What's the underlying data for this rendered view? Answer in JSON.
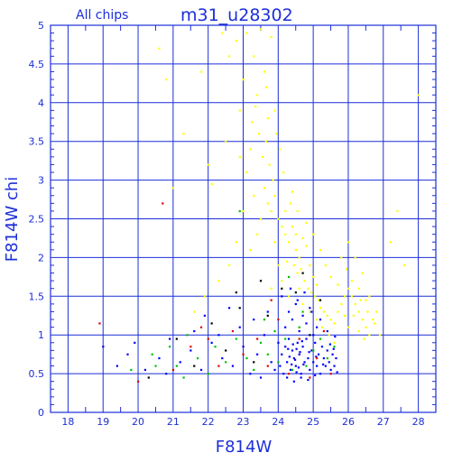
{
  "chart_data": {
    "type": "scatter",
    "title": "m31_u28302",
    "subtitle": "All chips",
    "xlabel": "F814W",
    "ylabel": "F814W chi",
    "xlim": [
      17.5,
      28.5
    ],
    "ylim": [
      0,
      5
    ],
    "x_ticks": [
      "18",
      "19",
      "20",
      "21",
      "22",
      "23",
      "24",
      "25",
      "26",
      "27",
      "28"
    ],
    "y_ticks": [
      "0",
      "0.5",
      "1",
      "1.5",
      "2",
      "2.5",
      "3",
      "3.5",
      "4",
      "4.5",
      "5"
    ],
    "grid": true,
    "legend": "none",
    "series": [
      {
        "color": "#ffff00",
        "points": [
          [
            20.6,
            4.7
          ],
          [
            21.3,
            3.6
          ],
          [
            21.8,
            4.4
          ],
          [
            22.0,
            3.2
          ],
          [
            22.4,
            4.9
          ],
          [
            22.6,
            4.6
          ],
          [
            22.8,
            4.8
          ],
          [
            22.9,
            3.9
          ],
          [
            23.0,
            4.3
          ],
          [
            23.1,
            4.9
          ],
          [
            23.2,
            3.4
          ],
          [
            23.3,
            4.6
          ],
          [
            23.4,
            4.1
          ],
          [
            23.5,
            4.95
          ],
          [
            23.6,
            4.4
          ],
          [
            23.7,
            3.8
          ],
          [
            23.8,
            4.85
          ],
          [
            23.9,
            3.9
          ],
          [
            23.45,
            3.6
          ],
          [
            23.55,
            3.3
          ],
          [
            23.65,
            3.5
          ],
          [
            23.75,
            3.2
          ],
          [
            23.85,
            3.0
          ],
          [
            23.6,
            2.9
          ],
          [
            23.7,
            2.7
          ],
          [
            23.8,
            2.6
          ],
          [
            23.9,
            2.8
          ],
          [
            24.0,
            2.5
          ],
          [
            24.1,
            2.4
          ],
          [
            24.2,
            2.3
          ],
          [
            24.3,
            2.2
          ],
          [
            24.4,
            2.4
          ],
          [
            24.5,
            2.1
          ],
          [
            24.6,
            2.0
          ],
          [
            24.2,
            2.6
          ],
          [
            24.35,
            2.7
          ],
          [
            24.45,
            1.9
          ],
          [
            24.55,
            1.8
          ],
          [
            24.65,
            1.85
          ],
          [
            24.75,
            1.7
          ],
          [
            24.85,
            1.6
          ],
          [
            24.95,
            1.55
          ],
          [
            25.05,
            1.5
          ],
          [
            25.15,
            1.45
          ],
          [
            24.5,
            2.3
          ],
          [
            24.7,
            2.25
          ],
          [
            24.8,
            2.15
          ],
          [
            24.9,
            1.9
          ],
          [
            25.0,
            1.75
          ],
          [
            25.1,
            1.65
          ],
          [
            25.2,
            1.35
          ],
          [
            25.3,
            1.3
          ],
          [
            25.4,
            1.25
          ],
          [
            25.5,
            1.2
          ],
          [
            25.6,
            1.15
          ],
          [
            25.7,
            1.3
          ],
          [
            25.8,
            1.4
          ],
          [
            25.9,
            1.5
          ],
          [
            26.0,
            1.6
          ],
          [
            26.1,
            1.5
          ],
          [
            26.2,
            1.4
          ],
          [
            26.3,
            1.3
          ],
          [
            26.4,
            1.2
          ],
          [
            26.5,
            1.1
          ],
          [
            26.6,
            1.0
          ],
          [
            26.7,
            1.2
          ],
          [
            26.8,
            1.3
          ],
          [
            26.1,
            1.7
          ],
          [
            26.3,
            1.6
          ],
          [
            26.5,
            1.45
          ],
          [
            26.4,
            1.8
          ],
          [
            26.2,
            2.0
          ],
          [
            26.0,
            2.2
          ],
          [
            25.8,
            2.0
          ],
          [
            26.6,
            1.5
          ],
          [
            26.75,
            1.15
          ],
          [
            26.9,
            1.0
          ],
          [
            26.45,
            0.95
          ],
          [
            26.3,
            1.05
          ],
          [
            26.0,
            1.1
          ],
          [
            25.9,
            1.25
          ],
          [
            23.2,
            2.1
          ],
          [
            23.4,
            2.3
          ],
          [
            23.0,
            2.6
          ],
          [
            22.8,
            2.2
          ],
          [
            22.6,
            1.9
          ],
          [
            22.3,
            1.7
          ],
          [
            21.9,
            1.5
          ],
          [
            21.6,
            1.3
          ],
          [
            23.1,
            3.1
          ],
          [
            22.9,
            3.3
          ],
          [
            23.3,
            2.8
          ],
          [
            23.5,
            2.5
          ],
          [
            23.9,
            2.2
          ],
          [
            24.0,
            1.9
          ],
          [
            24.1,
            1.7
          ],
          [
            23.8,
            1.6
          ],
          [
            24.3,
            1.5
          ],
          [
            24.25,
            1.95
          ],
          [
            24.6,
            1.6
          ],
          [
            24.7,
            1.4
          ],
          [
            24.9,
            1.3
          ],
          [
            25.1,
            1.2
          ],
          [
            25.25,
            1.1
          ],
          [
            25.45,
            1.0
          ],
          [
            25.6,
            0.9
          ],
          [
            28.0,
            4.1
          ],
          [
            27.4,
            2.6
          ],
          [
            27.2,
            2.2
          ],
          [
            27.6,
            1.9
          ],
          [
            24.05,
            3.4
          ],
          [
            24.15,
            3.1
          ],
          [
            23.95,
            3.6
          ],
          [
            23.35,
            3.95
          ],
          [
            24.4,
            2.85
          ],
          [
            24.55,
            2.6
          ],
          [
            24.8,
            2.45
          ],
          [
            25.0,
            2.3
          ],
          [
            25.2,
            2.1
          ],
          [
            25.35,
            1.9
          ],
          [
            25.5,
            1.75
          ],
          [
            25.7,
            1.65
          ],
          [
            25.95,
            1.85
          ],
          [
            26.15,
            1.25
          ],
          [
            26.35,
            1.45
          ],
          [
            26.55,
            1.3
          ],
          [
            22.1,
            2.95
          ],
          [
            22.5,
            3.5
          ],
          [
            21.0,
            2.9
          ],
          [
            20.8,
            4.3
          ],
          [
            23.65,
            4.2
          ],
          [
            23.25,
            3.75
          ]
        ]
      },
      {
        "color": "#0000ff",
        "points": [
          [
            19.0,
            0.85
          ],
          [
            19.4,
            0.6
          ],
          [
            19.7,
            0.75
          ],
          [
            20.2,
            0.55
          ],
          [
            20.6,
            0.7
          ],
          [
            20.9,
            0.95
          ],
          [
            21.2,
            0.65
          ],
          [
            21.5,
            0.8
          ],
          [
            21.8,
            0.55
          ],
          [
            22.1,
            0.9
          ],
          [
            22.4,
            0.7
          ],
          [
            22.7,
            0.6
          ],
          [
            23.0,
            0.85
          ],
          [
            23.2,
            0.5
          ],
          [
            23.4,
            0.75
          ],
          [
            23.6,
            1.0
          ],
          [
            23.8,
            0.65
          ],
          [
            23.9,
            0.55
          ],
          [
            24.0,
            0.9
          ],
          [
            24.05,
            0.6
          ],
          [
            24.1,
            0.75
          ],
          [
            24.15,
            0.5
          ],
          [
            24.2,
            0.85
          ],
          [
            24.25,
            0.65
          ],
          [
            24.3,
            0.95
          ],
          [
            24.35,
            0.55
          ],
          [
            24.4,
            0.8
          ],
          [
            24.45,
            0.7
          ],
          [
            24.5,
            0.6
          ],
          [
            24.55,
            0.9
          ],
          [
            24.6,
            0.75
          ],
          [
            24.65,
            0.5
          ],
          [
            24.7,
            0.85
          ],
          [
            24.75,
            0.65
          ],
          [
            24.8,
            0.95
          ],
          [
            24.85,
            0.7
          ],
          [
            24.9,
            0.55
          ],
          [
            24.95,
            0.8
          ],
          [
            25.0,
            0.65
          ],
          [
            25.05,
            0.9
          ],
          [
            25.1,
            0.6
          ],
          [
            25.15,
            0.75
          ],
          [
            25.2,
            0.5
          ],
          [
            25.25,
            0.85
          ],
          [
            25.3,
            0.7
          ],
          [
            25.35,
            0.6
          ],
          [
            25.4,
            0.8
          ],
          [
            25.45,
            0.65
          ],
          [
            25.5,
            0.55
          ],
          [
            25.55,
            0.75
          ],
          [
            25.6,
            0.6
          ],
          [
            25.65,
            0.7
          ],
          [
            24.2,
            1.1
          ],
          [
            24.4,
            1.2
          ],
          [
            24.6,
            1.05
          ],
          [
            24.8,
            1.15
          ],
          [
            25.0,
            1.0
          ],
          [
            24.3,
            1.3
          ],
          [
            24.5,
            1.4
          ],
          [
            24.7,
            1.25
          ],
          [
            24.9,
            1.35
          ],
          [
            25.1,
            1.1
          ],
          [
            24.1,
            1.5
          ],
          [
            24.35,
            1.6
          ],
          [
            24.55,
            1.45
          ],
          [
            24.75,
            1.55
          ],
          [
            24.95,
            1.3
          ],
          [
            25.2,
            1.2
          ],
          [
            25.4,
            1.05
          ],
          [
            24.25,
            0.45
          ],
          [
            24.45,
            0.4
          ],
          [
            24.65,
            0.45
          ],
          [
            24.85,
            0.42
          ],
          [
            25.05,
            0.48
          ],
          [
            22.9,
            1.1
          ],
          [
            23.3,
            1.2
          ],
          [
            23.5,
            0.45
          ],
          [
            22.3,
            1.0
          ],
          [
            21.6,
            1.05
          ],
          [
            20.8,
            0.5
          ],
          [
            19.9,
            0.9
          ],
          [
            21.9,
            1.25
          ],
          [
            22.6,
            1.35
          ],
          [
            23.7,
            1.3
          ],
          [
            24.32,
            0.72
          ],
          [
            24.48,
            0.68
          ],
          [
            24.52,
            0.82
          ],
          [
            24.38,
            0.62
          ],
          [
            24.58,
            0.58
          ],
          [
            24.42,
            0.88
          ],
          [
            24.62,
            0.78
          ],
          [
            24.28,
            0.82
          ],
          [
            24.72,
            0.62
          ],
          [
            24.68,
            0.92
          ],
          [
            24.52,
            0.52
          ],
          [
            24.88,
            0.78
          ],
          [
            25.08,
            0.72
          ],
          [
            25.28,
            0.62
          ],
          [
            25.48,
            0.88
          ],
          [
            25.58,
            0.82
          ],
          [
            25.68,
            0.52
          ],
          [
            25.62,
            0.98
          ]
        ]
      },
      {
        "color": "#00c000",
        "points": [
          [
            19.8,
            0.55
          ],
          [
            20.4,
            0.75
          ],
          [
            20.9,
            0.85
          ],
          [
            21.1,
            0.6
          ],
          [
            21.4,
            1.0
          ],
          [
            21.7,
            0.7
          ],
          [
            22.0,
            0.5
          ],
          [
            22.2,
            0.85
          ],
          [
            22.5,
            0.65
          ],
          [
            22.8,
            0.95
          ],
          [
            23.1,
            0.7
          ],
          [
            23.3,
            0.55
          ],
          [
            23.5,
            0.9
          ],
          [
            23.7,
            0.75
          ],
          [
            23.9,
            1.05
          ],
          [
            24.0,
            0.65
          ],
          [
            24.2,
            0.95
          ],
          [
            24.4,
            0.55
          ],
          [
            24.6,
            1.1
          ],
          [
            24.8,
            0.6
          ],
          [
            25.0,
            0.8
          ],
          [
            25.2,
            0.95
          ],
          [
            25.4,
            0.7
          ],
          [
            25.6,
            0.85
          ],
          [
            22.9,
            2.6
          ],
          [
            24.3,
            1.75
          ],
          [
            24.7,
            1.3
          ],
          [
            23.6,
            1.2
          ],
          [
            21.3,
            0.45
          ],
          [
            20.5,
            0.6
          ]
        ]
      },
      {
        "color": "#e00000",
        "points": [
          [
            18.9,
            1.15
          ],
          [
            20.0,
            0.4
          ],
          [
            20.7,
            2.7
          ],
          [
            21.0,
            0.55
          ],
          [
            21.5,
            0.85
          ],
          [
            22.0,
            0.95
          ],
          [
            22.3,
            0.6
          ],
          [
            22.7,
            1.05
          ],
          [
            23.0,
            0.75
          ],
          [
            23.4,
            0.95
          ],
          [
            23.7,
            0.6
          ],
          [
            24.0,
            1.2
          ],
          [
            24.3,
            0.5
          ],
          [
            24.6,
            0.95
          ],
          [
            24.9,
            0.45
          ],
          [
            25.1,
            0.7
          ],
          [
            25.3,
            1.05
          ],
          [
            25.5,
            0.5
          ],
          [
            23.8,
            1.45
          ],
          [
            21.8,
            1.1
          ]
        ]
      },
      {
        "color": "#000000",
        "points": [
          [
            20.3,
            0.45
          ],
          [
            21.1,
            0.95
          ],
          [
            21.6,
            0.6
          ],
          [
            22.1,
            1.15
          ],
          [
            22.5,
            0.8
          ],
          [
            22.9,
            1.35
          ],
          [
            23.3,
            0.65
          ],
          [
            23.7,
            1.25
          ],
          [
            24.1,
            1.6
          ],
          [
            24.5,
            1.55
          ],
          [
            24.9,
            1.0
          ],
          [
            25.2,
            1.45
          ],
          [
            23.5,
            1.7
          ],
          [
            22.8,
            1.55
          ],
          [
            24.7,
            1.8
          ]
        ]
      }
    ]
  }
}
